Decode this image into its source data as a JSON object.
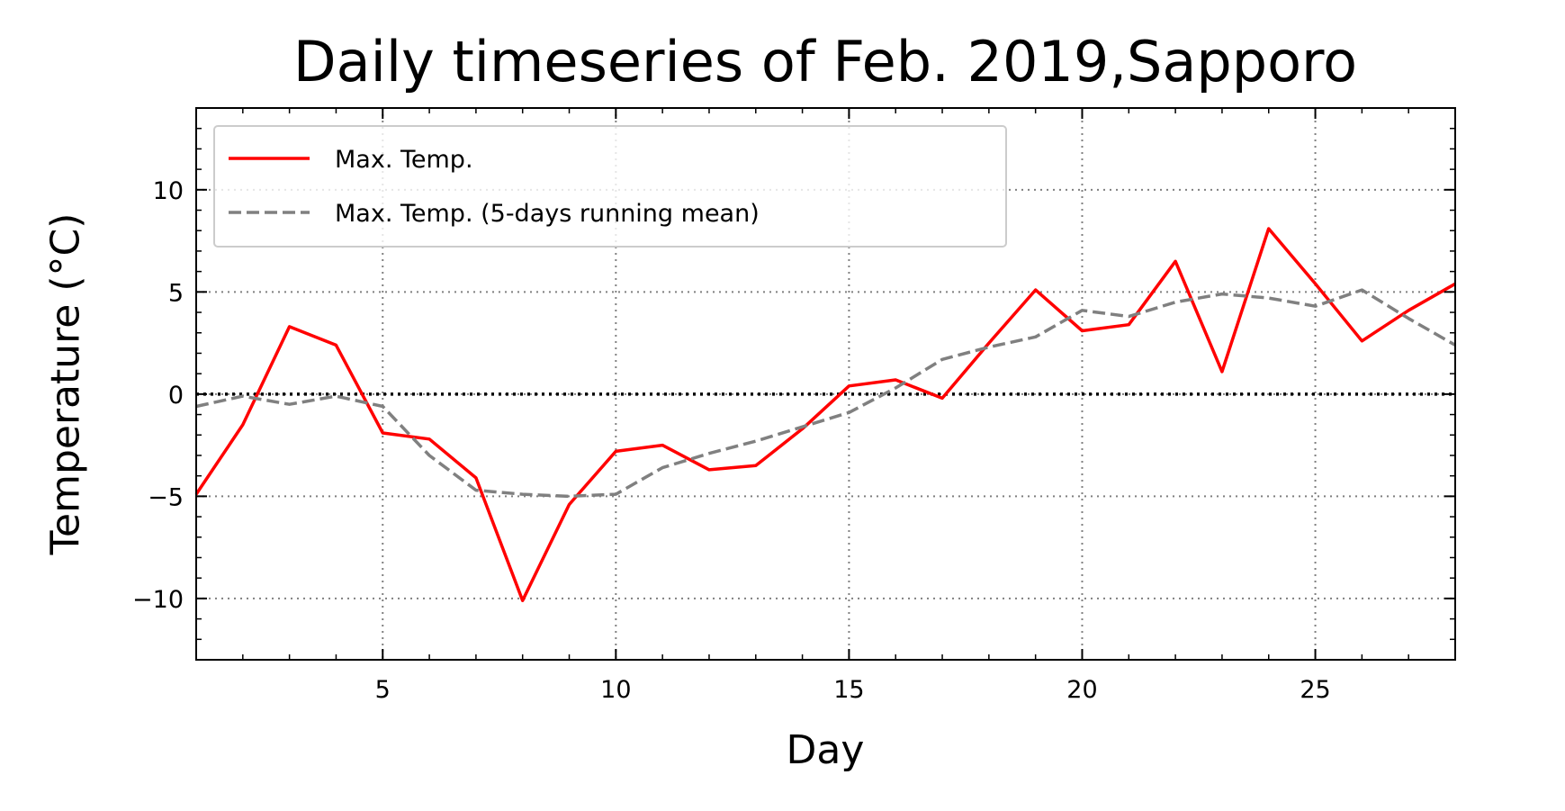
{
  "chart_data": {
    "type": "line",
    "title": "Daily timeseries of Feb. 2019,Sapporo",
    "xlabel": "Day",
    "ylabel": "Temperature (°C)",
    "xlim": [
      1,
      28
    ],
    "ylim": [
      -13,
      14
    ],
    "grid": true,
    "legend_position": "top-left",
    "x": [
      1,
      2,
      3,
      4,
      5,
      6,
      7,
      8,
      9,
      10,
      11,
      12,
      13,
      14,
      15,
      16,
      17,
      18,
      19,
      20,
      21,
      22,
      23,
      24,
      25,
      26,
      27,
      28
    ],
    "x_ticks": [
      5,
      10,
      15,
      20,
      25
    ],
    "x_tick_labels": [
      "5",
      "10",
      "15",
      "20",
      "25"
    ],
    "y_ticks": [
      -10,
      -5,
      0,
      5,
      10
    ],
    "y_tick_labels": [
      "−10",
      "−5",
      "0",
      "5",
      "10"
    ],
    "reference_line": {
      "y": 0,
      "style": "dotted",
      "color": "#000000"
    },
    "series": [
      {
        "name": "Max. Temp.",
        "color": "#ff0000",
        "style": "solid",
        "values": [
          -4.9,
          -1.5,
          3.3,
          2.4,
          -1.9,
          -2.2,
          -4.1,
          -10.1,
          -5.4,
          -2.8,
          -2.5,
          -3.7,
          -3.5,
          -1.7,
          0.4,
          0.7,
          -0.2,
          2.5,
          5.1,
          3.1,
          3.4,
          6.5,
          1.1,
          8.1,
          5.4,
          2.6,
          4.1,
          5.4
        ]
      },
      {
        "name": "Max. Temp. (5-days running mean)",
        "color": "#808080",
        "style": "dashed",
        "values": [
          -0.6,
          -0.1,
          -0.5,
          -0.1,
          -0.6,
          -3.0,
          -4.7,
          -4.9,
          -5.0,
          -4.9,
          -3.6,
          -2.9,
          -2.3,
          -1.6,
          -0.9,
          0.3,
          1.7,
          2.3,
          2.8,
          4.1,
          3.8,
          4.5,
          4.9,
          4.7,
          4.3,
          5.1,
          3.7,
          2.4
        ]
      }
    ]
  }
}
